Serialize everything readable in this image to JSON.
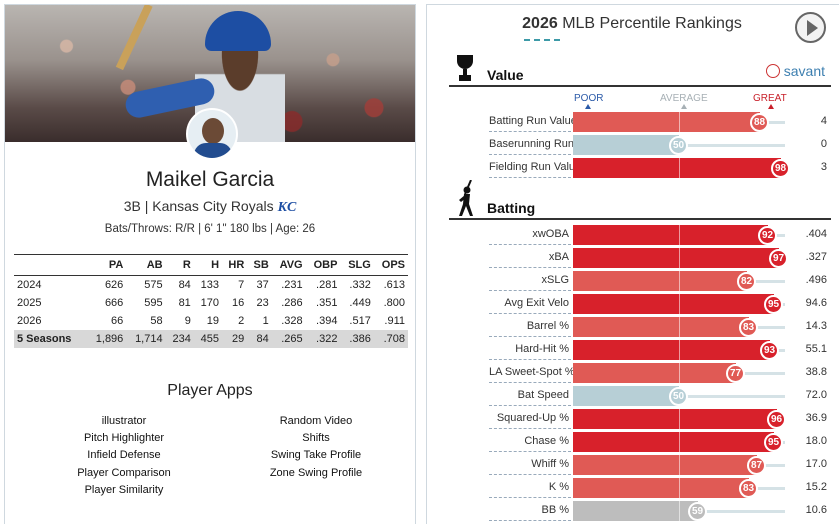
{
  "player": {
    "name": "Maikel Garcia",
    "position_team": "3B | Kansas City Royals",
    "team_logo_text": "KC",
    "bio": "Bats/Throws: R/R | 6' 1\" 180 lbs | Age: 26"
  },
  "stats": {
    "headers": [
      "",
      "PA",
      "AB",
      "R",
      "H",
      "HR",
      "SB",
      "AVG",
      "OBP",
      "SLG",
      "OPS"
    ],
    "rows": [
      [
        "2024",
        "626",
        "575",
        "84",
        "133",
        "7",
        "37",
        ".231",
        ".281",
        ".332",
        ".613"
      ],
      [
        "2025",
        "666",
        "595",
        "81",
        "170",
        "16",
        "23",
        ".286",
        ".351",
        ".449",
        ".800"
      ],
      [
        "2026",
        "66",
        "58",
        "9",
        "19",
        "2",
        "1",
        ".328",
        ".394",
        ".517",
        ".911"
      ]
    ],
    "total": [
      "5 Seasons",
      "1,896",
      "1,714",
      "234",
      "455",
      "29",
      "84",
      ".265",
      ".322",
      ".386",
      ".708"
    ]
  },
  "apps": {
    "title": "Player Apps",
    "left": [
      "illustrator",
      "Pitch Highlighter",
      "Infield Defense",
      "Player Comparison",
      "Player Similarity"
    ],
    "right": [
      "Random Video",
      "Shifts",
      "Swing Take Profile",
      "Zone Swing Profile"
    ]
  },
  "rankings": {
    "title_year": "2026",
    "title_rest": " MLB Percentile Rankings",
    "scale": {
      "poor": "POOR",
      "average": "AVERAGE",
      "great": "GREAT"
    },
    "savant": "savant",
    "sections": [
      {
        "label": "Value",
        "rows": [
          {
            "label": "Batting Run Value",
            "pct": 88,
            "value": "4"
          },
          {
            "label": "Baserunning Run Value",
            "pct": 50,
            "value": "0"
          },
          {
            "label": "Fielding Run Value",
            "pct": 98,
            "value": "3"
          }
        ]
      },
      {
        "label": "Batting",
        "rows": [
          {
            "label": "xwOBA",
            "pct": 92,
            "value": ".404"
          },
          {
            "label": "xBA",
            "pct": 97,
            "value": ".327"
          },
          {
            "label": "xSLG",
            "pct": 82,
            "value": ".496"
          },
          {
            "label": "Avg Exit Velo",
            "pct": 95,
            "value": "94.6"
          },
          {
            "label": "Barrel %",
            "pct": 83,
            "value": "14.3"
          },
          {
            "label": "Hard-Hit %",
            "pct": 93,
            "value": "55.1"
          },
          {
            "label": "LA Sweet-Spot %",
            "pct": 77,
            "value": "38.8"
          },
          {
            "label": "Bat Speed",
            "pct": 50,
            "value": "72.0"
          },
          {
            "label": "Squared-Up %",
            "pct": 96,
            "value": "36.9"
          },
          {
            "label": "Chase %",
            "pct": 95,
            "value": "18.0"
          },
          {
            "label": "Whiff %",
            "pct": 87,
            "value": "17.0"
          },
          {
            "label": "K %",
            "pct": 83,
            "value": "15.2"
          },
          {
            "label": "BB %",
            "pct": 59,
            "value": "10.6"
          }
        ]
      }
    ],
    "colors": {
      "great": "#d8212b",
      "above": "#e05a55",
      "average": "#b7cfd6",
      "neutral_gray": "#bdbdbd"
    }
  }
}
